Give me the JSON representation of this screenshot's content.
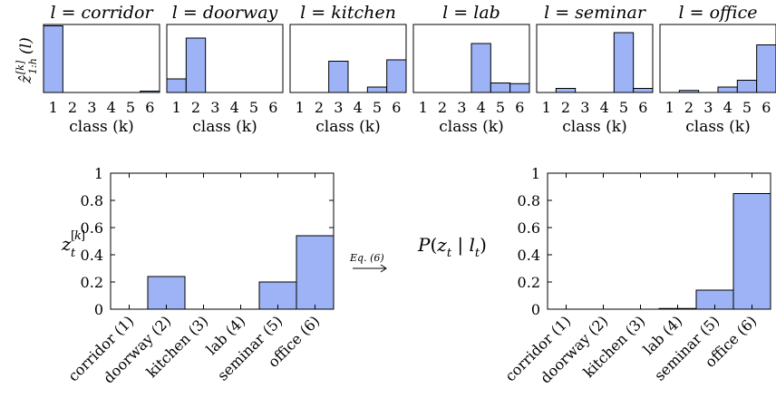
{
  "chart_data": [
    {
      "type": "bar",
      "title": "l = corridor",
      "title_var": "l",
      "title_value": "corridor",
      "ylabel": "ẑ[k]1:h(l)",
      "xlabel": "class (k)",
      "categories": [
        "1",
        "2",
        "3",
        "4",
        "5",
        "6"
      ],
      "values": [
        0.98,
        0.0,
        0.0,
        0.0,
        0.0,
        0.02
      ],
      "ylim": [
        0,
        1
      ]
    },
    {
      "type": "bar",
      "title": "l = doorway",
      "title_var": "l",
      "title_value": "doorway",
      "xlabel": "class (k)",
      "categories": [
        "1",
        "2",
        "3",
        "4",
        "5",
        "6"
      ],
      "values": [
        0.2,
        0.8,
        0.0,
        0.0,
        0.0,
        0.0
      ],
      "ylim": [
        0,
        1
      ]
    },
    {
      "type": "bar",
      "title": "l = kitchen",
      "title_var": "l",
      "title_value": "kitchen",
      "xlabel": "class (k)",
      "categories": [
        "1",
        "2",
        "3",
        "4",
        "5",
        "6"
      ],
      "values": [
        0.0,
        0.0,
        0.46,
        0.0,
        0.08,
        0.48
      ],
      "ylim": [
        0,
        1
      ]
    },
    {
      "type": "bar",
      "title": "l = lab",
      "title_var": "l",
      "title_value": "lab",
      "xlabel": "class (k)",
      "categories": [
        "1",
        "2",
        "3",
        "4",
        "5",
        "6"
      ],
      "values": [
        0.0,
        0.0,
        0.0,
        0.72,
        0.14,
        0.13
      ],
      "ylim": [
        0,
        1
      ]
    },
    {
      "type": "bar",
      "title": "l = seminar",
      "title_var": "l",
      "title_value": "seminar",
      "xlabel": "class (k)",
      "categories": [
        "1",
        "2",
        "3",
        "4",
        "5",
        "6"
      ],
      "values": [
        0.0,
        0.06,
        0.0,
        0.0,
        0.88,
        0.06
      ],
      "ylim": [
        0,
        1
      ]
    },
    {
      "type": "bar",
      "title": "l = office",
      "title_var": "l",
      "title_value": "office",
      "xlabel": "class (k)",
      "categories": [
        "1",
        "2",
        "3",
        "4",
        "5",
        "6"
      ],
      "values": [
        0.0,
        0.03,
        0.0,
        0.08,
        0.18,
        0.7
      ],
      "ylim": [
        0,
        1
      ]
    },
    {
      "type": "bar",
      "ylabel": "z[k]t",
      "categories": [
        "corridor (1)",
        "doorway (2)",
        "kitchen (3)",
        "lab (4)",
        "seminar (5)",
        "office (6)"
      ],
      "values": [
        0.0,
        0.24,
        0.0,
        0.0,
        0.2,
        0.54
      ],
      "ylim": [
        0,
        1
      ],
      "yticks": [
        "0",
        "0.2",
        "0.4",
        "0.6",
        "0.8",
        "1"
      ]
    },
    {
      "type": "bar",
      "ylabel": "P(zt | lt)",
      "categories": [
        "corridor (1)",
        "doorway (2)",
        "kitchen (3)",
        "lab (4)",
        "seminar (5)",
        "office (6)"
      ],
      "values": [
        0.0,
        0.0,
        0.0,
        0.005,
        0.14,
        0.85
      ],
      "ylim": [
        0,
        1
      ],
      "yticks": [
        "0",
        "0.2",
        "0.4",
        "0.6",
        "0.8",
        "1"
      ]
    }
  ],
  "arrow_label": "Eq. (6)",
  "colors": {
    "bar_fill": "#9db3f5",
    "axis": "#000000"
  }
}
